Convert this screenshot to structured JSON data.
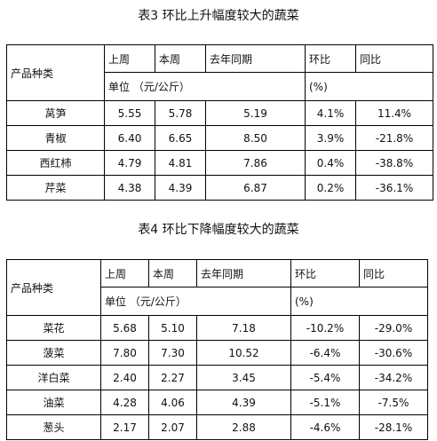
{
  "tables": [
    {
      "title": "表3 环比上升幅度较大的蔬菜",
      "header": {
        "product": "产品种类",
        "last_week": "上周",
        "this_week": "本周",
        "last_year": "去年同期",
        "mom": "环比",
        "yoy": "同比",
        "unit": "单位 （元/公斤）",
        "percent": "(%)"
      },
      "rows": [
        [
          "莴笋",
          "5.55",
          "5.78",
          "5.19",
          "4.1%",
          "11.4%"
        ],
        [
          "青椒",
          "6.40",
          "6.65",
          "8.50",
          "3.9%",
          "-21.8%"
        ],
        [
          "西红柿",
          "4.79",
          "4.81",
          "7.86",
          "0.4%",
          "-38.8%"
        ],
        [
          "芹菜",
          "4.38",
          "4.39",
          "6.87",
          "0.2%",
          "-36.1%"
        ]
      ]
    },
    {
      "title": "表4 环比下降幅度较大的蔬菜",
      "header": {
        "product": "产品种类",
        "last_week": "上周",
        "this_week": "本周",
        "last_year": "去年同期",
        "mom": "环比",
        "yoy": "同比",
        "unit": "单位 （元/公斤）",
        "percent": "(%)"
      },
      "rows": [
        [
          "菜花",
          "5.68",
          "5.10",
          "7.18",
          "-10.2%",
          "-29.0%"
        ],
        [
          "菠菜",
          "7.80",
          "7.30",
          "10.52",
          "-6.4%",
          "-30.6%"
        ],
        [
          "洋白菜",
          "2.40",
          "2.27",
          "3.45",
          "-5.4%",
          "-34.2%"
        ],
        [
          "油菜",
          "4.28",
          "4.06",
          "4.39",
          "-5.1%",
          "-7.5%"
        ],
        [
          "葱头",
          "2.17",
          "2.07",
          "2.88",
          "-4.6%",
          "-28.1%"
        ]
      ]
    }
  ]
}
